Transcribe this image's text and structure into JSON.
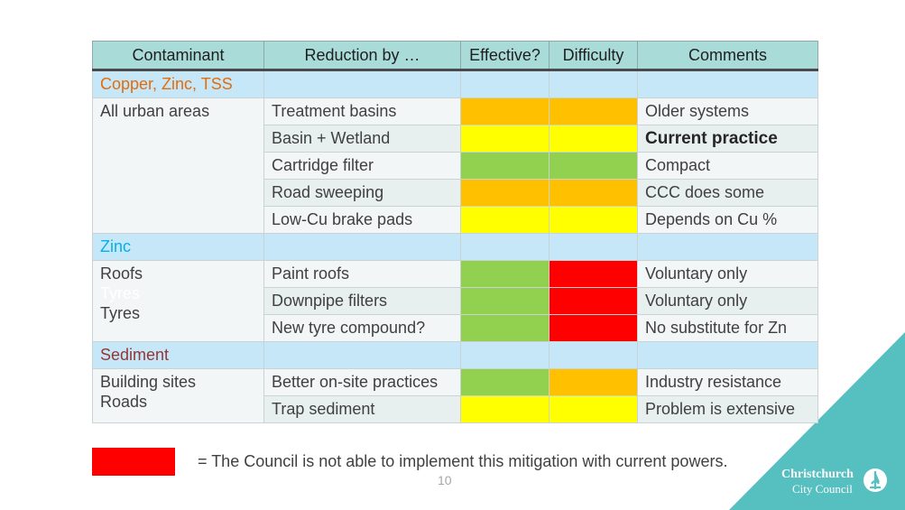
{
  "colors": {
    "red": "#ff0000",
    "orange": "#ffc000",
    "yellow": "#ffff00",
    "green": "#92d050",
    "teal_accent": "#56bfc0"
  },
  "table": {
    "headers": [
      "Contaminant",
      "Reduction by …",
      "Effective?",
      "Difficulty",
      "Comments"
    ],
    "sections": [
      {
        "title": "Copper, Zinc, TSS",
        "contaminant_lines": [
          "All urban areas"
        ],
        "rows": [
          {
            "reduction": "Treatment basins",
            "effective": "orange",
            "difficulty": "orange",
            "comment": "Older systems"
          },
          {
            "reduction": "Basin + Wetland",
            "effective": "yellow",
            "difficulty": "yellow",
            "comment": "Current practice"
          },
          {
            "reduction": "Cartridge filter",
            "effective": "green",
            "difficulty": "green",
            "comment": "Compact"
          },
          {
            "reduction": "Road sweeping",
            "effective": "orange",
            "difficulty": "orange",
            "comment": "CCC does some"
          },
          {
            "reduction": "Low-Cu brake pads",
            "effective": "yellow",
            "difficulty": "yellow",
            "comment": "Depends on Cu %"
          }
        ]
      },
      {
        "title": "Zinc",
        "contaminant_lines": [
          "Roofs",
          "Tyres",
          "Tyres"
        ],
        "rows": [
          {
            "reduction": "Paint roofs",
            "effective": "green",
            "difficulty": "red",
            "comment": "Voluntary only"
          },
          {
            "reduction": "Downpipe filters",
            "effective": "green",
            "difficulty": "red",
            "comment": "Voluntary only"
          },
          {
            "reduction": "New tyre compound?",
            "effective": "green",
            "difficulty": "red",
            "comment": "No substitute for Zn"
          }
        ]
      },
      {
        "title": "Sediment",
        "contaminant_lines": [
          "Building sites",
          "Roads"
        ],
        "rows": [
          {
            "reduction": "Better on-site practices",
            "effective": "green",
            "difficulty": "orange",
            "comment": "Industry resistance"
          },
          {
            "reduction": "Trap sediment",
            "effective": "yellow",
            "difficulty": "yellow",
            "comment": "Problem is extensive"
          }
        ]
      }
    ]
  },
  "legend": {
    "swatch_color": "red",
    "text": "= The Council is not able to implement this mitigation with current powers."
  },
  "page_number": "10",
  "logo": {
    "line1": "Christchurch",
    "line2": "City Council"
  }
}
